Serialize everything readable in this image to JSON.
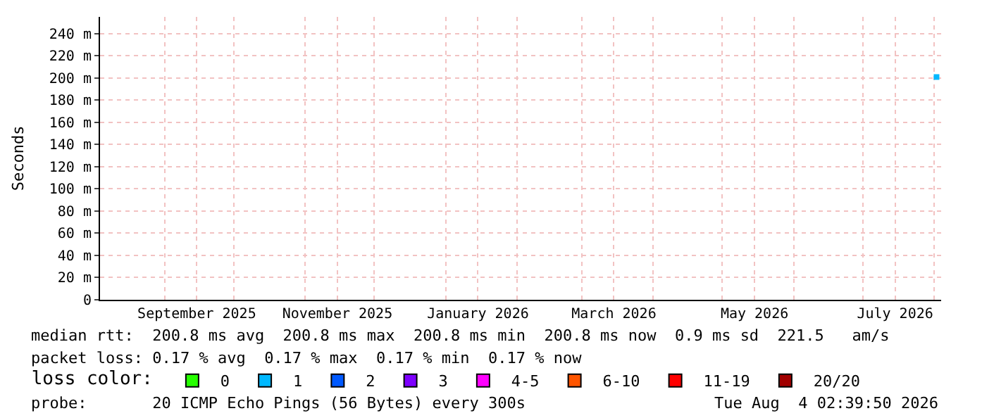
{
  "chart_data": {
    "type": "scatter",
    "ylabel": "Seconds",
    "legend_title": "loss color:",
    "x": [
      "2026-08-02"
    ],
    "xlim": [
      "2025-08-04",
      "2026-08-04"
    ],
    "xticks": [
      {
        "value": "2025-09-01",
        "label": null
      },
      {
        "value": "2025-09-15",
        "label": "September 2025"
      },
      {
        "value": "2025-10-01",
        "label": null
      },
      {
        "value": "2025-11-01",
        "label": null
      },
      {
        "value": "2025-11-15",
        "label": "November 2025"
      },
      {
        "value": "2025-12-01",
        "label": null
      },
      {
        "value": "2026-01-01",
        "label": null
      },
      {
        "value": "2026-01-15",
        "label": "January 2026"
      },
      {
        "value": "2026-02-01",
        "label": null
      },
      {
        "value": "2026-03-01",
        "label": null
      },
      {
        "value": "2026-03-15",
        "label": "March 2026"
      },
      {
        "value": "2026-04-01",
        "label": null
      },
      {
        "value": "2026-05-01",
        "label": null
      },
      {
        "value": "2026-05-15",
        "label": "May 2026"
      },
      {
        "value": "2026-06-01",
        "label": null
      },
      {
        "value": "2026-07-01",
        "label": null
      },
      {
        "value": "2026-07-15",
        "label": "July 2026"
      },
      {
        "value": "2026-08-01",
        "label": null
      }
    ],
    "ylim": [
      0,
      255
    ],
    "yticks": [
      0,
      {
        "value": 20,
        "label": "20 m"
      },
      {
        "value": 40,
        "label": "40 m"
      },
      {
        "value": 60,
        "label": "60 m"
      },
      {
        "value": 80,
        "label": "80 m"
      },
      {
        "value": 100,
        "label": "100 m"
      },
      {
        "value": 120,
        "label": "120 m"
      },
      {
        "value": 140,
        "label": "140 m"
      },
      {
        "value": 160,
        "label": "160 m"
      },
      {
        "value": 180,
        "label": "180 m"
      },
      {
        "value": 200,
        "label": "200 m"
      },
      {
        "value": 220,
        "label": "220 m"
      },
      {
        "value": 240,
        "label": "240 m"
      }
    ],
    "grid": true,
    "marker": "square",
    "legend": "bottom",
    "series": [
      {
        "color": "#00b8ff",
        "values": [
          200.8
        ]
      },
      {
        "name": "0",
        "color": "#26ff00",
        "values": [
          null
        ]
      },
      {
        "name": "1",
        "color": "#00b8ff",
        "values": [
          null
        ]
      },
      {
        "name": "2",
        "color": "#0059ff",
        "values": [
          null
        ]
      },
      {
        "name": "3",
        "color": "#7e00ff",
        "values": [
          null
        ]
      },
      {
        "name": "4-5",
        "color": "#ff00ff",
        "values": [
          null
        ]
      },
      {
        "name": "6-10",
        "color": "#ff5500",
        "values": [
          null
        ]
      },
      {
        "name": "11-19",
        "color": "#ff0000",
        "values": [
          null
        ]
      },
      {
        "name": "20/20",
        "color": "#a10000",
        "values": [
          null
        ]
      }
    ],
    "annotations": [
      "median rtt:  200.8 ms avg  200.8 ms max  200.8 ms min  200.8 ms now  0.9 ms sd  221.5   am/s",
      "packet loss: 0.17 % avg  0.17 % max  0.17 % min  0.17 % now",
      "probe:       20 ICMP Echo Pings (56 Bytes) every 300s",
      "Tue Aug  4 02:39:50 2026"
    ]
  }
}
